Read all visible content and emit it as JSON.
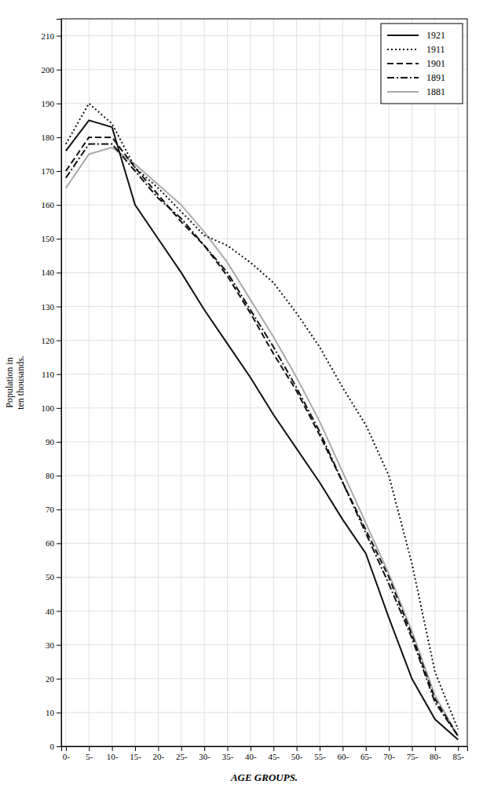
{
  "chart_data": {
    "type": "line",
    "x_label": "AGE GROUPS.",
    "y_label": "Population in\nten thousands.",
    "x": [
      0,
      5,
      10,
      15,
      20,
      25,
      30,
      35,
      40,
      45,
      50,
      55,
      60,
      65,
      70,
      75,
      80,
      85
    ],
    "xlim": [
      -1,
      87
    ],
    "xticks": [
      {
        "value": 0,
        "label": "0-"
      },
      {
        "value": 5,
        "label": "5-"
      },
      {
        "value": 10,
        "label": "10-"
      },
      {
        "value": 15,
        "label": "15-"
      },
      {
        "value": 20,
        "label": "20-"
      },
      {
        "value": 25,
        "label": "25-"
      },
      {
        "value": 30,
        "label": "30-"
      },
      {
        "value": 35,
        "label": "35-"
      },
      {
        "value": 40,
        "label": "40-"
      },
      {
        "value": 45,
        "label": "45-"
      },
      {
        "value": 50,
        "label": "50-"
      },
      {
        "value": 55,
        "label": "55-"
      },
      {
        "value": 60,
        "label": "60-"
      },
      {
        "value": 65,
        "label": "65-"
      },
      {
        "value": 70,
        "label": "70-"
      },
      {
        "value": 75,
        "label": "75-"
      },
      {
        "value": 80,
        "label": "80-"
      },
      {
        "value": 85,
        "label": "85-"
      }
    ],
    "ylim": [
      0,
      215
    ],
    "yticks": [
      0,
      10,
      20,
      30,
      40,
      50,
      60,
      70,
      80,
      90,
      100,
      110,
      120,
      130,
      140,
      150,
      160,
      170,
      180,
      190,
      200,
      210
    ],
    "grid": true,
    "legend": "upper right",
    "series": [
      {
        "name": "1881",
        "color": "#aaaaaa",
        "line_style": "solid",
        "values": [
          165,
          175,
          177,
          172,
          166,
          160,
          152,
          143,
          132,
          121,
          109,
          96,
          81,
          66,
          51,
          34,
          15,
          3
        ]
      },
      {
        "name": "1891",
        "color": "#111111",
        "line_style": "dashdot",
        "values": [
          168,
          178,
          178,
          170,
          162,
          156,
          148,
          140,
          129,
          118,
          106,
          93,
          78,
          63,
          48,
          32,
          13,
          3
        ]
      },
      {
        "name": "1901",
        "color": "#111111",
        "line_style": "dashed",
        "values": [
          170,
          180,
          180,
          171,
          163,
          155,
          148,
          139,
          128,
          116,
          105,
          92,
          78,
          64,
          50,
          33,
          14,
          3
        ]
      },
      {
        "name": "1911",
        "color": "#111111",
        "line_style": "dotted",
        "values": [
          178,
          190,
          184,
          171,
          165,
          158,
          151,
          148,
          143,
          137,
          128,
          118,
          106,
          95,
          80,
          54,
          22,
          5
        ]
      },
      {
        "name": "1921",
        "color": "#111111",
        "line_style": "solid",
        "values": [
          176,
          185,
          183,
          160,
          150,
          140,
          129,
          119,
          109,
          98,
          88,
          78,
          67,
          57,
          38,
          20,
          8,
          2
        ]
      }
    ]
  }
}
